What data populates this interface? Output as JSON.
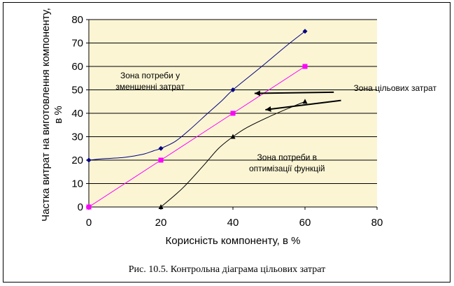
{
  "caption": "Рис. 10.5. Контрольна діаграма цільових затрат",
  "chart_data": {
    "type": "line",
    "xlabel": "Корисність компоненту, в %",
    "ylabel": "Частка витрат на виготовлення компоненту, в %",
    "xlim": [
      0,
      80
    ],
    "ylim": [
      0,
      80
    ],
    "x_ticks": [
      "0",
      "20",
      "40",
      "60",
      "80"
    ],
    "y_ticks": [
      "0",
      "10",
      "20",
      "30",
      "40",
      "50",
      "60",
      "70",
      "80"
    ],
    "grid": "horizontal",
    "plot_background": "#fbf5d4",
    "series": [
      {
        "color": "#000080",
        "marker": "diamond",
        "points": [
          [
            0,
            20
          ],
          [
            20,
            25
          ],
          [
            40,
            50
          ],
          [
            60,
            75
          ]
        ],
        "curve": [
          [
            0,
            20
          ],
          [
            4,
            20.6
          ],
          [
            10,
            21.2
          ],
          [
            15,
            22.5
          ],
          [
            18,
            24
          ],
          [
            20,
            25
          ],
          [
            24,
            28
          ],
          [
            28,
            33
          ],
          [
            33,
            40
          ],
          [
            37,
            45.5
          ],
          [
            40,
            50
          ],
          [
            48,
            60
          ],
          [
            55,
            69
          ],
          [
            60,
            75
          ]
        ]
      },
      {
        "color": "#ff00ff",
        "marker": "square",
        "points": [
          [
            0,
            0
          ],
          [
            20,
            20
          ],
          [
            40,
            40
          ],
          [
            60,
            60
          ]
        ],
        "curve": [
          [
            0,
            0
          ],
          [
            20,
            20
          ],
          [
            40,
            40
          ],
          [
            60,
            60
          ]
        ]
      },
      {
        "color": "#000000",
        "marker": "triangle",
        "points": [
          [
            20,
            0
          ],
          [
            40,
            30
          ],
          [
            60,
            45
          ]
        ],
        "curve": [
          [
            20,
            0
          ],
          [
            26,
            8
          ],
          [
            32,
            18
          ],
          [
            36,
            25
          ],
          [
            40,
            30
          ],
          [
            44,
            34
          ],
          [
            50,
            38.5
          ],
          [
            56,
            42.5
          ],
          [
            60,
            45
          ]
        ]
      }
    ],
    "annotations": [
      {
        "lines": [
          "Зона  потреби у",
          "зменшенні затрат"
        ],
        "x": 17,
        "y": 55
      },
      {
        "lines": [
          "Зона потреби в",
          "оптимізації функцій"
        ],
        "x": 55,
        "y": 20
      },
      {
        "lines": [
          "Зона цільових затрат"
        ],
        "x": 85,
        "y": 49.5
      }
    ],
    "arrows": [
      {
        "from": [
          68,
          49
        ],
        "to": [
          46,
          48.5
        ]
      },
      {
        "from": [
          70,
          45.5
        ],
        "to": [
          49,
          41.5
        ]
      }
    ]
  }
}
